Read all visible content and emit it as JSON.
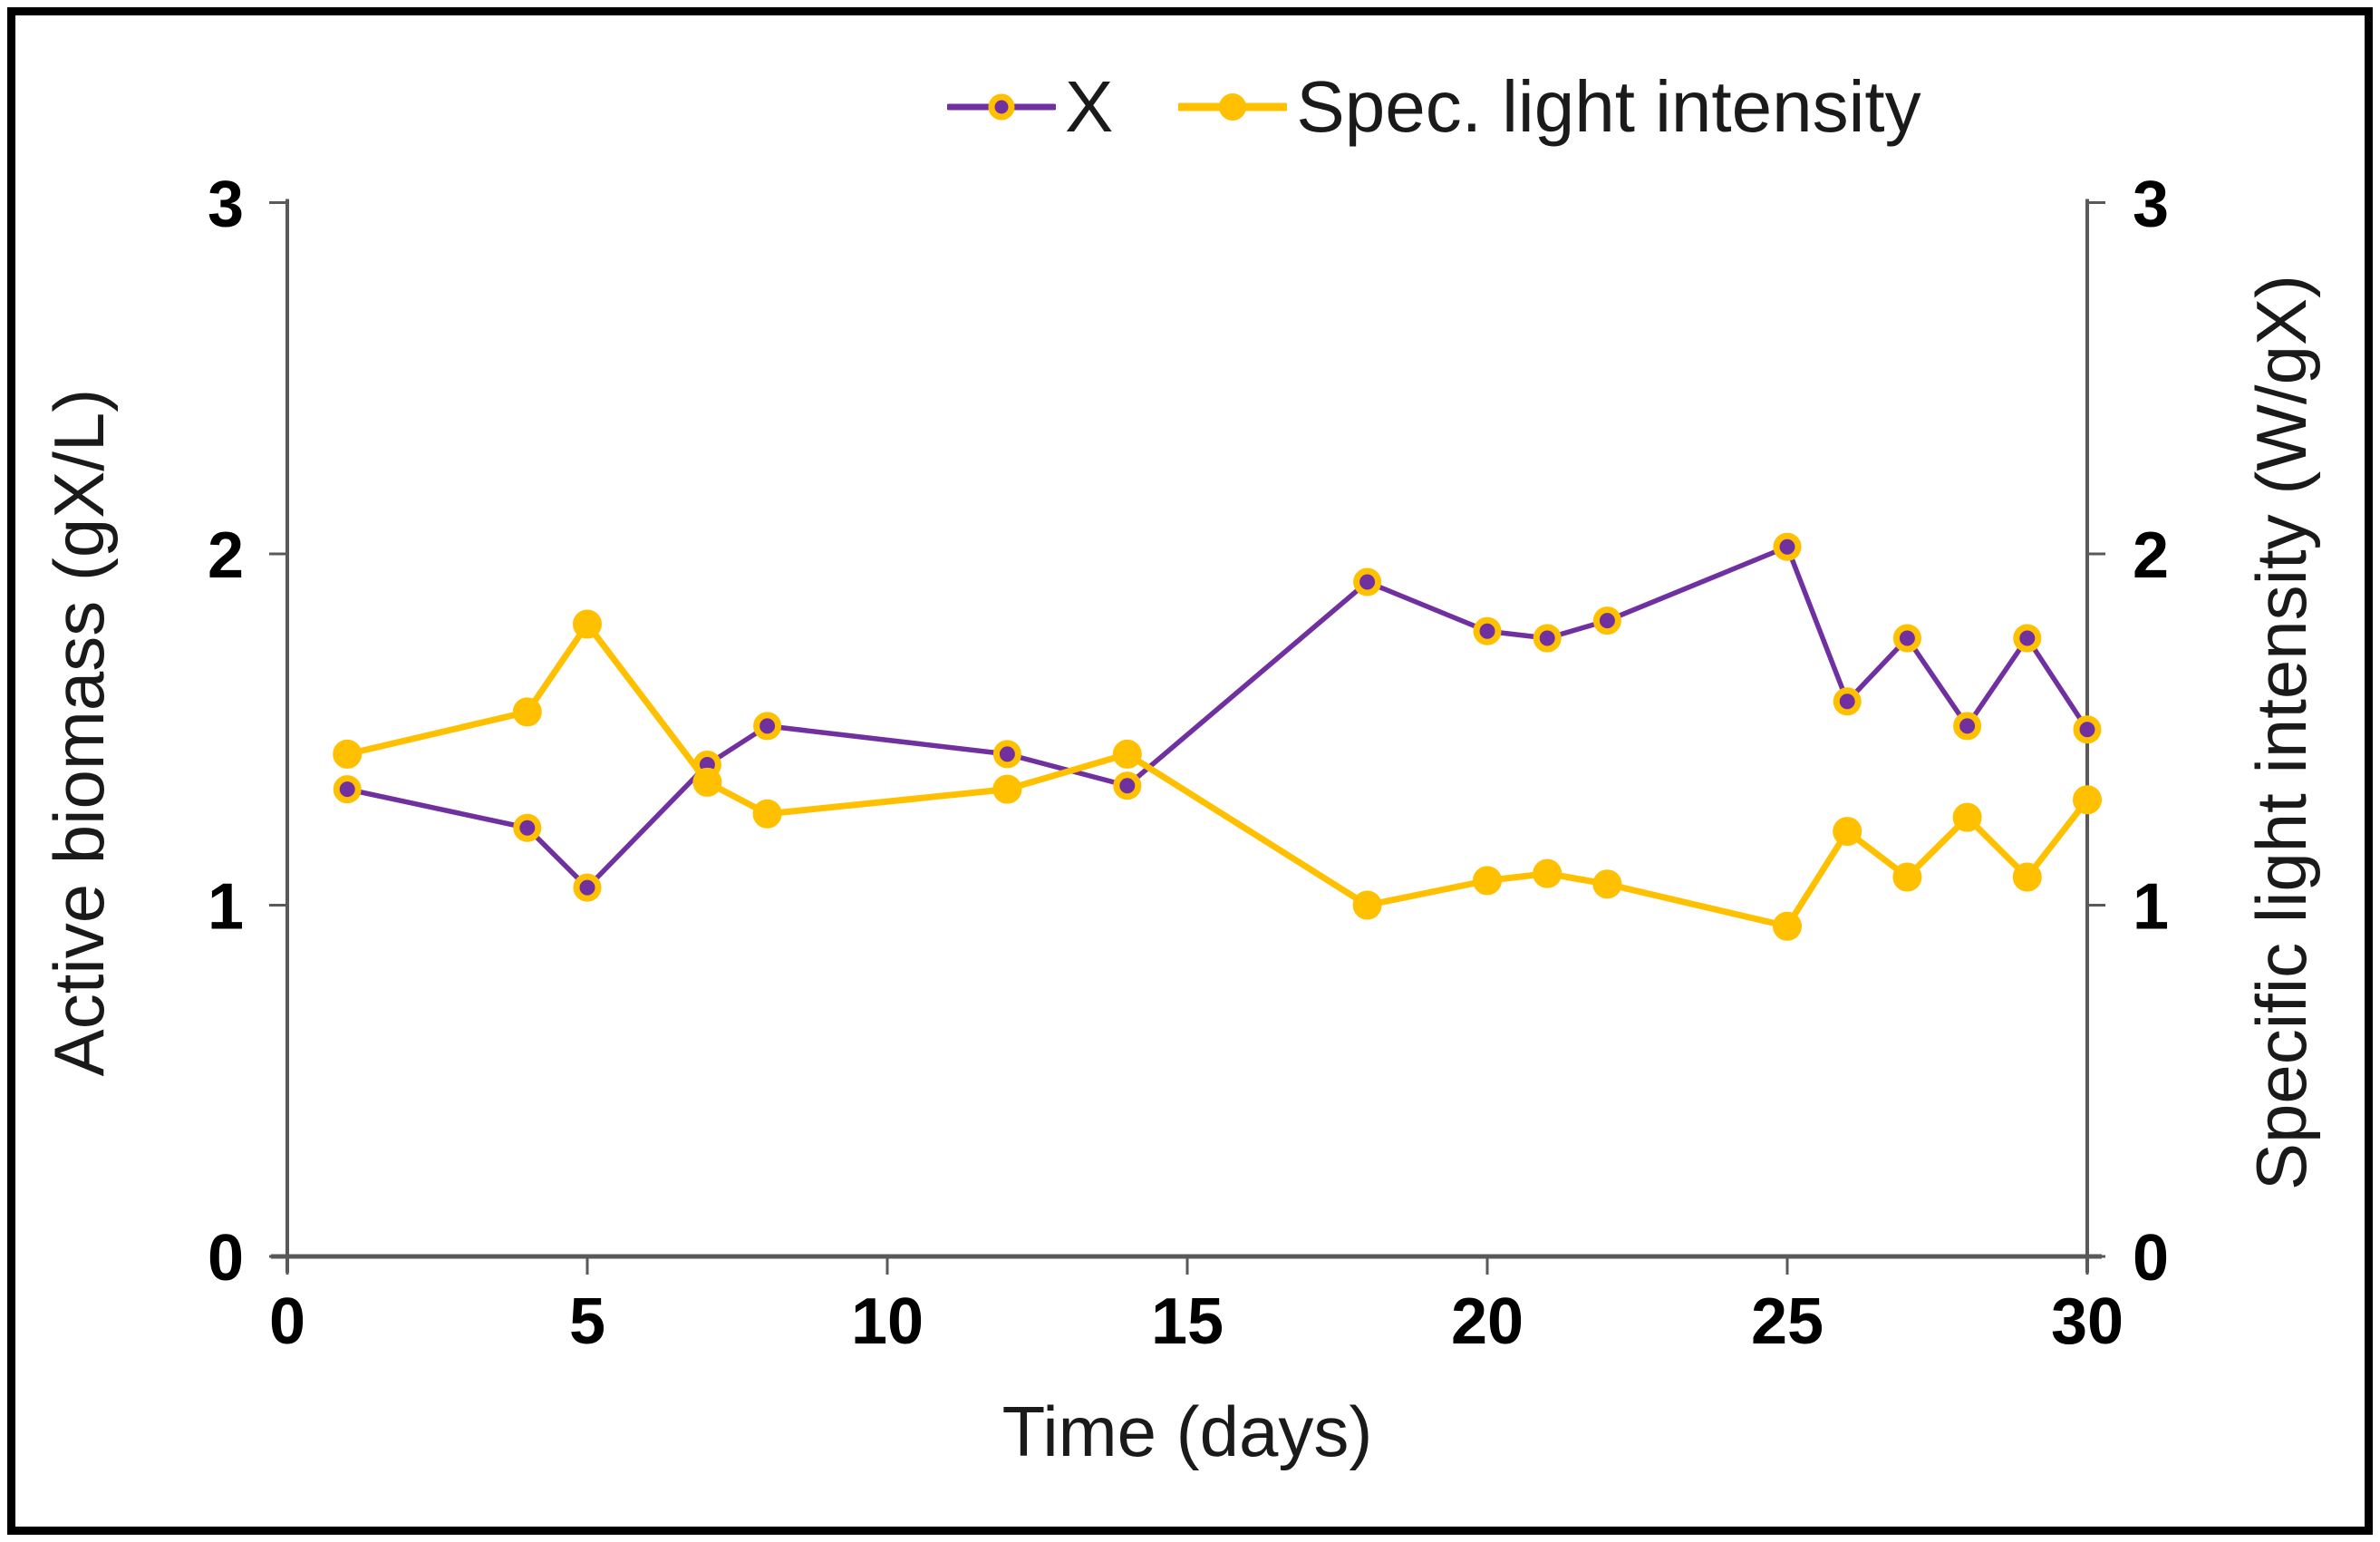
{
  "chart_data": {
    "type": "line",
    "title": "",
    "x": [
      1,
      4,
      5,
      7,
      8,
      12,
      14,
      18,
      20,
      21,
      22,
      25,
      26,
      27,
      28,
      29,
      30
    ],
    "series": [
      {
        "name": "X",
        "axis": "left",
        "color": "#7030A0",
        "marker_fill": "#7030A0",
        "marker_stroke": "#FFC000",
        "values": [
          1.33,
          1.22,
          1.05,
          1.4,
          1.51,
          1.43,
          1.34,
          1.92,
          1.78,
          1.76,
          1.81,
          2.02,
          1.58,
          1.76,
          1.51,
          1.76,
          1.5
        ]
      },
      {
        "name": "Spec. light intensity",
        "axis": "right",
        "color": "#FFC000",
        "marker_fill": "#FFC000",
        "marker_stroke": "#FFC000",
        "values": [
          1.43,
          1.55,
          1.8,
          1.35,
          1.26,
          1.33,
          1.43,
          1.0,
          1.07,
          1.09,
          1.06,
          0.94,
          1.21,
          1.08,
          1.25,
          1.08,
          1.3
        ]
      }
    ],
    "xlabel": "Time (days)",
    "ylabel_left": "Active biomass (gX/L)",
    "ylabel_right": "Specific light intensity (W/gX)",
    "xlim": [
      0,
      30
    ],
    "ylim_left": [
      0,
      3
    ],
    "ylim_right": [
      0,
      3
    ],
    "xticks": [
      0,
      5,
      10,
      15,
      20,
      25,
      30
    ],
    "yticks": [
      0,
      1,
      2,
      3
    ],
    "grid": false,
    "legend_position": "top-center"
  },
  "legend": {
    "items": [
      {
        "label": "X"
      },
      {
        "label": "Spec. light intensity"
      }
    ]
  },
  "colors": {
    "axis_line": "#595959",
    "tick_text": "#000000",
    "border": "#000000"
  }
}
